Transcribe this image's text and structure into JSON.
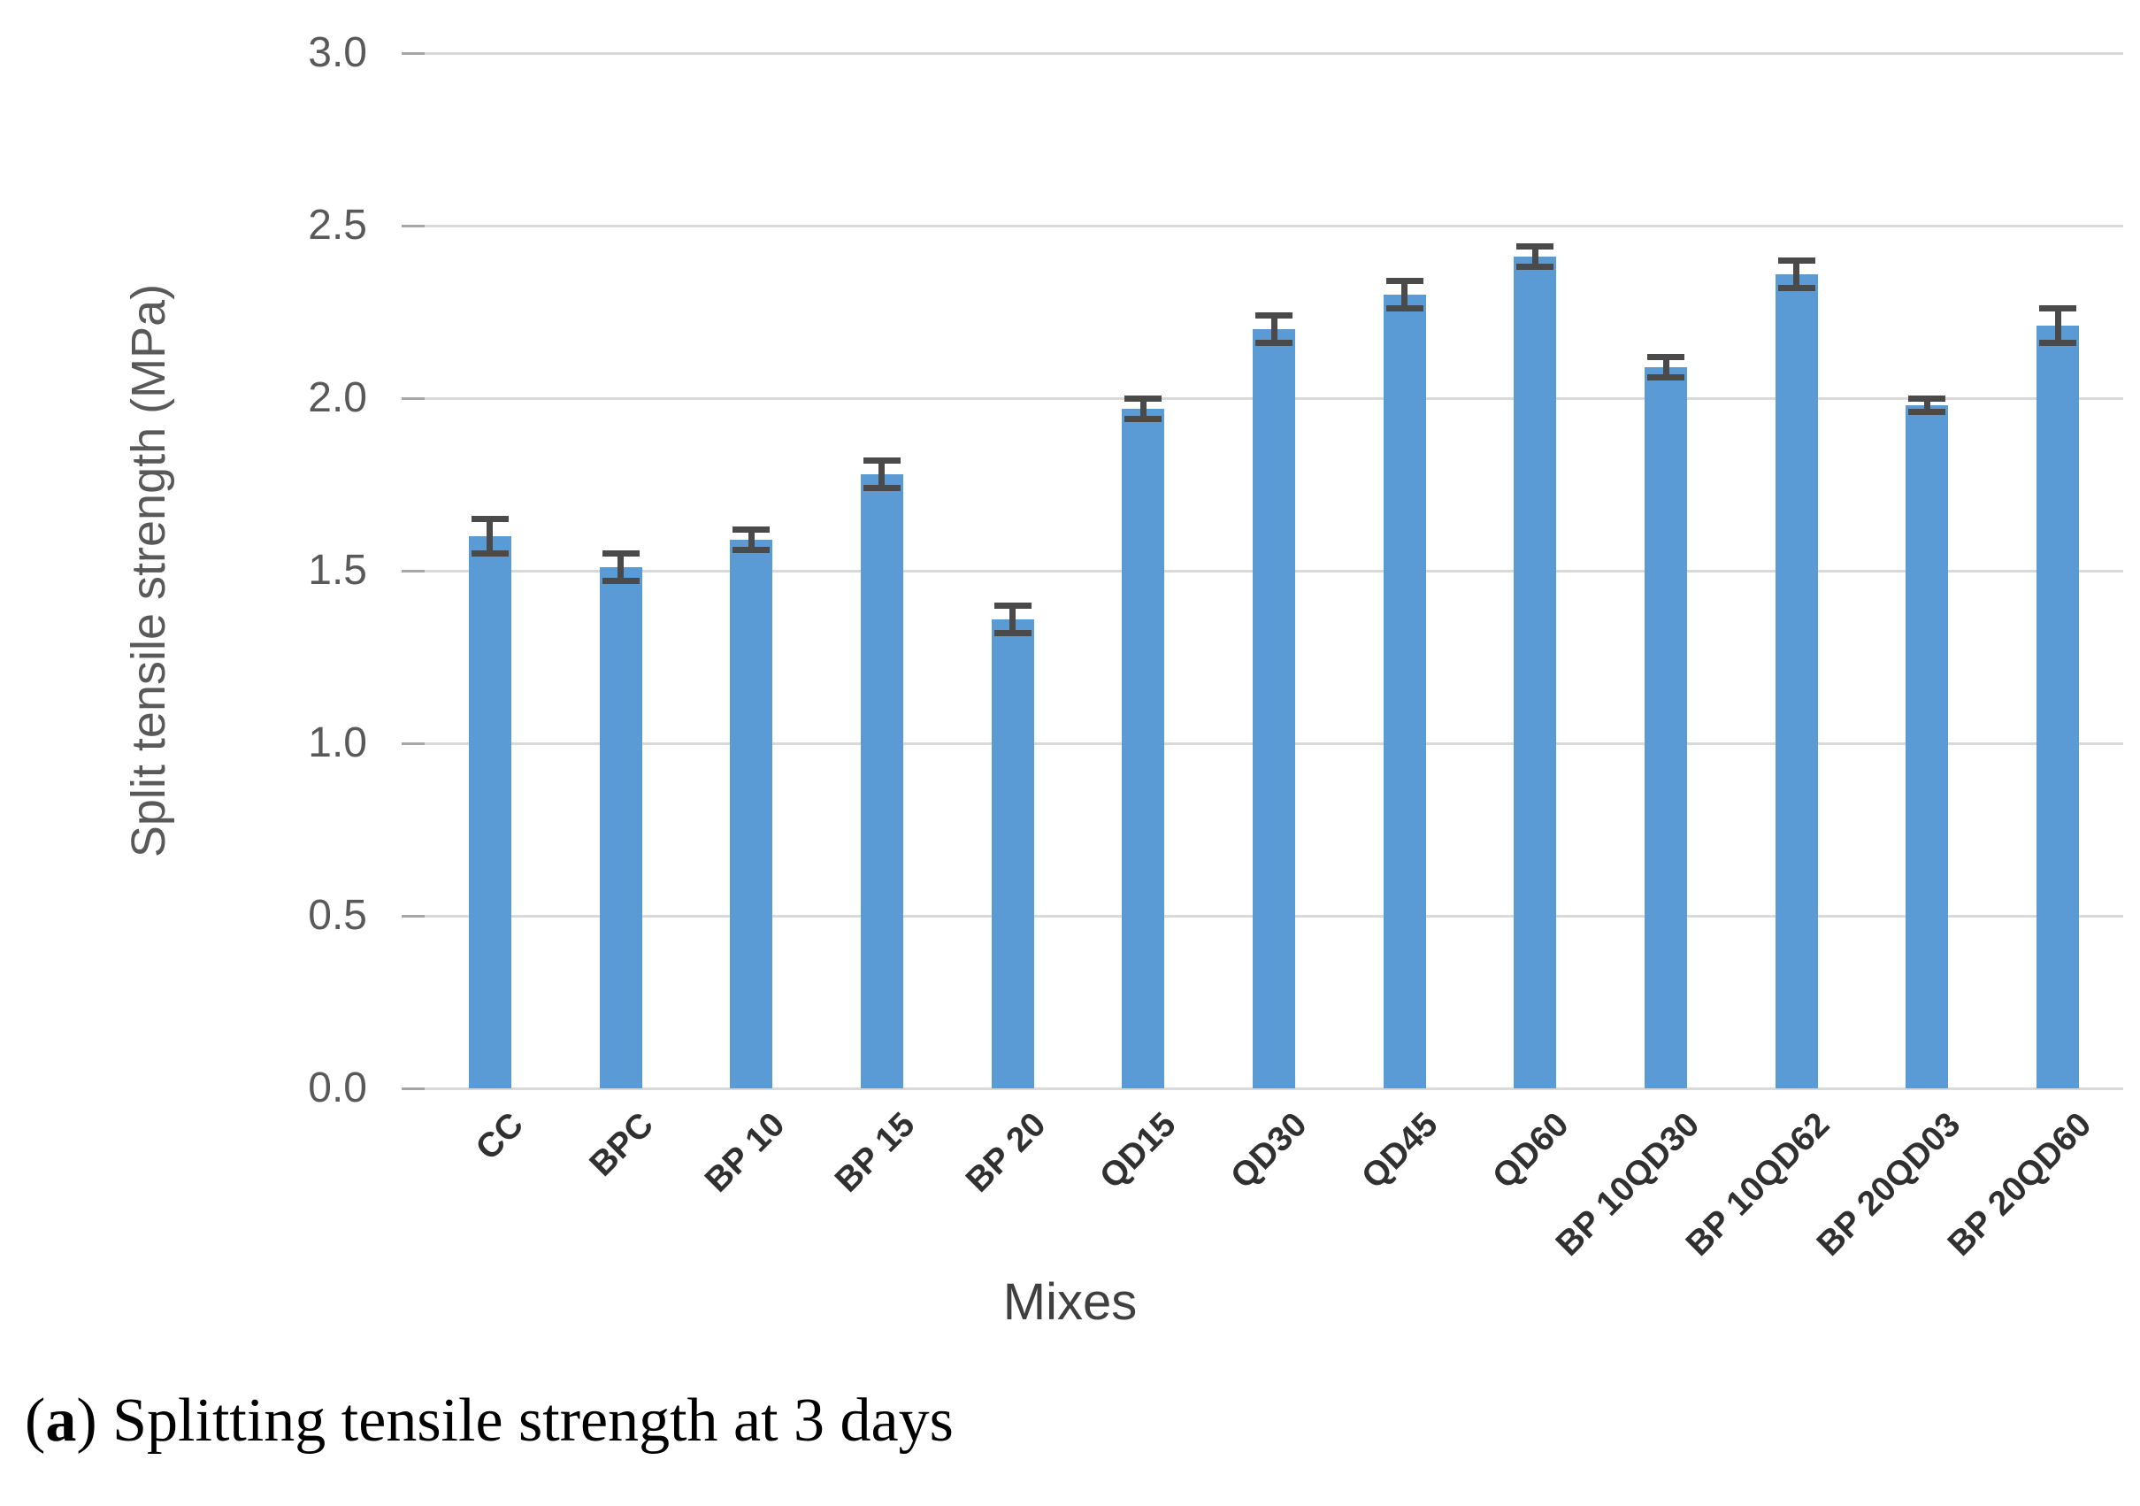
{
  "figure": {
    "caption": {
      "open": "(",
      "label": "a",
      "rest": ") Splitting tensile strength at 3 days"
    }
  },
  "chart_data": {
    "type": "bar",
    "title": "",
    "xlabel": "Mixes",
    "ylabel": "Split tensile strength (MPa)",
    "categories": [
      "CC",
      "BPC",
      "BP 10",
      "BP 15",
      "BP 20",
      "QD15",
      "QD30",
      "QD45",
      "QD60",
      "BP 10QD30",
      "BP 10QD62",
      "BP 20QD03",
      "BP 20QD60"
    ],
    "values": [
      1.6,
      1.51,
      1.59,
      1.78,
      1.36,
      1.97,
      2.2,
      2.3,
      2.41,
      2.09,
      2.36,
      1.98,
      2.21
    ],
    "errors": [
      0.05,
      0.04,
      0.03,
      0.04,
      0.04,
      0.03,
      0.04,
      0.04,
      0.03,
      0.03,
      0.04,
      0.02,
      0.05
    ],
    "ylim": [
      0,
      3.0
    ],
    "ytick_step": 0.5,
    "ytick_labels": [
      "0.0",
      "0.5",
      "1.0",
      "1.5",
      "2.0",
      "2.5",
      "3.0"
    ],
    "grid": "horizontal-only",
    "legend": "none",
    "bar_color": "#5B9BD5",
    "error_bar_color": "#4a4a4a",
    "gridline_color": "#d9d9d9",
    "tick_stub_color": "#a6a6a6",
    "axis_text_color": "#595959",
    "category_text_color": "#303030",
    "x_title_color": "#3f3f3f"
  }
}
